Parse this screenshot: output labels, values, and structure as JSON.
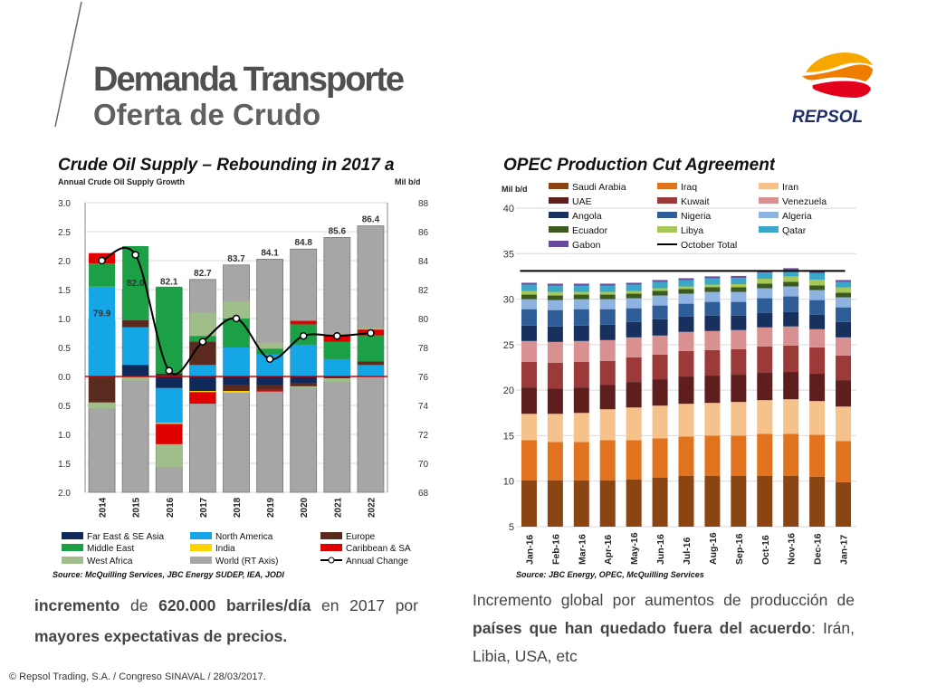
{
  "header": {
    "title": "Demanda Transporte",
    "subtitle": "Oferta de Crudo",
    "logo_text": "REPSOL"
  },
  "chart1_meta": {
    "title": "Crude Oil Supply – Rebounding in 2017 a",
    "left_axis_label": "Annual Crude Oil Supply Growth",
    "right_axis_label": "Mil b/d",
    "source": "Source: McQuilling Services, JBC Energy SUDEP, IEA, JODI",
    "legend_items": [
      {
        "label": "Far East & SE Asia",
        "color": "#0f2a5a",
        "kind": "box"
      },
      {
        "label": "North America",
        "color": "#14a6e6",
        "kind": "box"
      },
      {
        "label": "Europe",
        "color": "#5a2a1e",
        "kind": "box"
      },
      {
        "label": "Middle East",
        "color": "#1ca046",
        "kind": "box"
      },
      {
        "label": "India",
        "color": "#ffd200",
        "kind": "box"
      },
      {
        "label": "Caribbean & SA",
        "color": "#e00000",
        "kind": "box"
      },
      {
        "label": "West Africa",
        "color": "#9fbe8a",
        "kind": "box"
      },
      {
        "label": "World (RT Axis)",
        "color": "#a6a6a6",
        "kind": "box"
      },
      {
        "label": "Annual Change",
        "color": "#000000",
        "kind": "line"
      }
    ]
  },
  "chart2_meta": {
    "title": "OPEC Production Cut Agreement",
    "y_axis_label": "Mil b/d",
    "source": "Source: JBC Energy, OPEC, McQuilling Services",
    "legend_items": [
      {
        "label": "Saudi Arabia",
        "color": "#8b4513",
        "kind": "box"
      },
      {
        "label": "Iraq",
        "color": "#e2731e",
        "kind": "box"
      },
      {
        "label": "Iran",
        "color": "#f6c28c",
        "kind": "box"
      },
      {
        "label": "UAE",
        "color": "#5e1e1e",
        "kind": "box"
      },
      {
        "label": "Kuwait",
        "color": "#9c3a3a",
        "kind": "box"
      },
      {
        "label": "Venezuela",
        "color": "#d99090",
        "kind": "box"
      },
      {
        "label": "Angola",
        "color": "#17305e",
        "kind": "box"
      },
      {
        "label": "Nigeria",
        "color": "#2f5d97",
        "kind": "box"
      },
      {
        "label": "Algeria",
        "color": "#8fb3e0",
        "kind": "box"
      },
      {
        "label": "Ecuador",
        "color": "#3d5a1e",
        "kind": "box"
      },
      {
        "label": "Libya",
        "color": "#a6c75a",
        "kind": "box"
      },
      {
        "label": "Qatar",
        "color": "#3aa6c8",
        "kind": "box"
      },
      {
        "label": "Gabon",
        "color": "#6a4a9c",
        "kind": "box"
      },
      {
        "label": "October Total",
        "color": "#000000",
        "kind": "line"
      }
    ]
  },
  "chart_data": [
    {
      "type": "bar",
      "title": "Crude Oil Supply – Rebounding in 2017 a",
      "ylabel": "Annual Crude Oil Supply Growth",
      "y2label": "Mil b/d",
      "categories": [
        "2014",
        "2015",
        "2016",
        "2017",
        "2018",
        "2019",
        "2020",
        "2021",
        "2022"
      ],
      "ylim": [
        -2.0,
        3.0
      ],
      "y_ticks": [
        3.0,
        2.5,
        2.0,
        1.5,
        1.0,
        0.5,
        0.0,
        -0.5,
        -1.0,
        -1.5,
        -2.0
      ],
      "y_tick_labels": [
        "3.0",
        "2.5",
        "2.0",
        "1.5",
        "1.0",
        "0.5",
        "0.0",
        "0.5",
        "1.0",
        "1.5",
        "2.0"
      ],
      "y2lim": [
        68,
        88
      ],
      "y2_ticks": [
        88,
        86,
        84,
        82,
        80,
        78,
        76,
        74,
        72,
        70,
        68
      ],
      "world_series": {
        "name": "World (RT Axis)",
        "color": "#a6a6a6",
        "values": [
          79.9,
          82.0,
          82.1,
          82.7,
          83.7,
          84.1,
          84.8,
          85.6,
          86.4
        ],
        "labels": [
          "79.9",
          "82.0",
          "82.1",
          "82.7",
          "83.7",
          "84.1",
          "84.8",
          "85.6",
          "86.4"
        ]
      },
      "stack_series": [
        {
          "name": "Far East & SE Asia",
          "color": "#0f2a5a",
          "values": [
            0,
            0.2,
            -0.2,
            -0.25,
            -0.15,
            -0.15,
            -0.12,
            -0.03,
            0
          ]
        },
        {
          "name": "North America",
          "color": "#14a6e6",
          "values": [
            1.55,
            0.65,
            -0.6,
            0.2,
            0.5,
            0.38,
            0.55,
            0.3,
            0.2
          ]
        },
        {
          "name": "Europe",
          "color": "#5a2a1e",
          "values": [
            -0.45,
            0.12,
            0.05,
            0.4,
            -0.1,
            -0.08,
            -0.05,
            0,
            0.06
          ]
        },
        {
          "name": "Middle East",
          "color": "#1ca046",
          "values": [
            0.4,
            1.28,
            1.5,
            0.1,
            0.5,
            0.1,
            0.35,
            0.3,
            0.45
          ]
        },
        {
          "name": "India",
          "color": "#ffd200",
          "values": [
            0,
            0,
            -0.02,
            -0.02,
            -0.03,
            0,
            0,
            0,
            0
          ]
        },
        {
          "name": "Caribbean & SA",
          "color": "#e00000",
          "values": [
            0.18,
            0,
            -0.35,
            -0.2,
            0,
            -0.03,
            0.06,
            0.12,
            0.1
          ]
        },
        {
          "name": "West Africa",
          "color": "#9fbe8a",
          "values": [
            -0.1,
            -0.07,
            -0.4,
            0.4,
            0.3,
            0.1,
            -0.03,
            -0.07,
            0.03
          ]
        }
      ],
      "line_series": {
        "name": "Annual Change",
        "color": "#000000",
        "values": [
          2.0,
          2.1,
          0.1,
          0.6,
          1.0,
          0.3,
          0.7,
          0.7,
          0.75
        ]
      }
    },
    {
      "type": "bar",
      "title": "OPEC Production Cut Agreement",
      "ylabel": "Mil b/d",
      "categories": [
        "Jan-16",
        "Feb-16",
        "Mar-16",
        "Apr-16",
        "May-16",
        "Jun-16",
        "Jul-16",
        "Aug-16",
        "Sep-16",
        "Oct-16",
        "Nov-16",
        "Dec-16",
        "Jan-17"
      ],
      "ylim": [
        5,
        40
      ],
      "y_ticks": [
        40,
        35,
        30,
        25,
        20,
        15,
        10,
        5
      ],
      "series": [
        {
          "name": "Saudi Arabia",
          "color": "#8b4513",
          "values": [
            10.1,
            10.1,
            10.1,
            10.1,
            10.2,
            10.4,
            10.6,
            10.6,
            10.6,
            10.6,
            10.6,
            10.5,
            9.9
          ]
        },
        {
          "name": "Iraq",
          "color": "#e2731e",
          "values": [
            4.4,
            4.2,
            4.2,
            4.4,
            4.3,
            4.3,
            4.3,
            4.4,
            4.4,
            4.6,
            4.6,
            4.6,
            4.5
          ]
        },
        {
          "name": "Iran",
          "color": "#f6c28c",
          "values": [
            2.9,
            3.1,
            3.2,
            3.4,
            3.6,
            3.6,
            3.6,
            3.6,
            3.7,
            3.7,
            3.8,
            3.7,
            3.8
          ]
        },
        {
          "name": "UAE",
          "color": "#5e1e1e",
          "values": [
            2.9,
            2.8,
            2.8,
            2.7,
            2.8,
            2.9,
            3.0,
            3.0,
            3.0,
            3.0,
            3.0,
            3.0,
            2.9
          ]
        },
        {
          "name": "Kuwait",
          "color": "#9c3a3a",
          "values": [
            2.8,
            2.8,
            2.8,
            2.6,
            2.7,
            2.7,
            2.8,
            2.8,
            2.8,
            2.9,
            2.9,
            2.9,
            2.7
          ]
        },
        {
          "name": "Venezuela",
          "color": "#d99090",
          "values": [
            2.3,
            2.3,
            2.3,
            2.3,
            2.2,
            2.1,
            2.1,
            2.1,
            2.1,
            2.1,
            2.1,
            2.0,
            2.0
          ]
        },
        {
          "name": "Angola",
          "color": "#17305e",
          "values": [
            1.7,
            1.7,
            1.7,
            1.7,
            1.7,
            1.8,
            1.7,
            1.7,
            1.6,
            1.6,
            1.6,
            1.6,
            1.7
          ]
        },
        {
          "name": "Nigeria",
          "color": "#2f5d97",
          "values": [
            1.8,
            1.8,
            1.8,
            1.7,
            1.5,
            1.5,
            1.4,
            1.5,
            1.5,
            1.6,
            1.7,
            1.6,
            1.6
          ]
        },
        {
          "name": "Algeria",
          "color": "#8fb3e0",
          "values": [
            1.1,
            1.1,
            1.1,
            1.1,
            1.1,
            1.1,
            1.1,
            1.1,
            1.1,
            1.1,
            1.1,
            1.1,
            1.1
          ]
        },
        {
          "name": "Ecuador",
          "color": "#3d5a1e",
          "values": [
            0.5,
            0.5,
            0.5,
            0.5,
            0.5,
            0.5,
            0.5,
            0.5,
            0.5,
            0.5,
            0.5,
            0.5,
            0.5
          ]
        },
        {
          "name": "Libya",
          "color": "#a6c75a",
          "values": [
            0.4,
            0.4,
            0.3,
            0.3,
            0.3,
            0.3,
            0.3,
            0.3,
            0.35,
            0.55,
            0.6,
            0.65,
            0.6
          ]
        },
        {
          "name": "Qatar",
          "color": "#3aa6c8",
          "values": [
            0.7,
            0.7,
            0.7,
            0.7,
            0.7,
            0.7,
            0.7,
            0.7,
            0.7,
            0.7,
            0.7,
            0.7,
            0.6
          ]
        },
        {
          "name": "Gabon",
          "color": "#6a4a9c",
          "values": [
            0.2,
            0.2,
            0.2,
            0.2,
            0.2,
            0.2,
            0.2,
            0.2,
            0.2,
            0.2,
            0.2,
            0.2,
            0.2
          ]
        }
      ],
      "reference_line": {
        "name": "October Total",
        "value": 33.1
      }
    }
  ],
  "text_left": {
    "parts": [
      {
        "text": "incremento",
        "bold": true
      },
      {
        "text": " de ",
        "bold": false
      },
      {
        "text": "620.000 barriles/día",
        "bold": true
      },
      {
        "text": " en 2017 por ",
        "bold": false
      },
      {
        "text": "mayores expectativas de precios.",
        "bold": true
      }
    ]
  },
  "text_right": {
    "parts": [
      {
        "text": "Incremento global por aumentos de producción de ",
        "bold": false
      },
      {
        "text": "países que han quedado fuera del acuerdo",
        "bold": true
      },
      {
        "text": ": Irán, Libia, USA, etc",
        "bold": false
      }
    ]
  },
  "footer": {
    "text": "© Repsol Trading, S.A. /  Congreso SINAVAL / 28/03/2017."
  }
}
